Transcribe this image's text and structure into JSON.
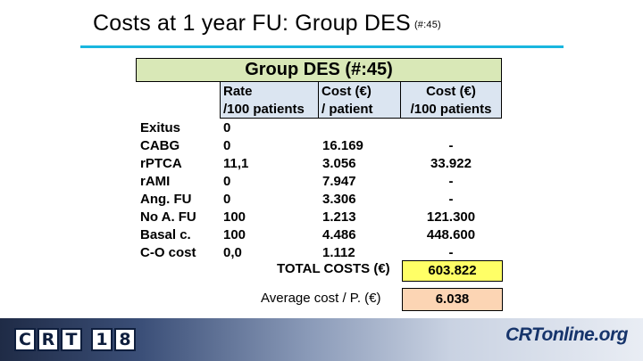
{
  "slide": {
    "title": "Costs at 1 year FU: Group DES",
    "subtitle": "(#:45)"
  },
  "table": {
    "banner": "Group DES (#:45)",
    "headers": {
      "rate_line1": "Rate",
      "rate_line2": "/100 patients",
      "cost_patient_line1": "Cost (€)",
      "cost_patient_line2": "/ patient",
      "cost_100_line1": "Cost (€)",
      "cost_100_line2": "/100 patients"
    },
    "rows": [
      {
        "label": "Exitus",
        "rate": "0",
        "cost_per_patient": "",
        "cost_per_100": ""
      },
      {
        "label": "CABG",
        "rate": "0",
        "cost_per_patient": "16.169",
        "cost_per_100": "-"
      },
      {
        "label": "rPTCA",
        "rate": "11,1",
        "cost_per_patient": "3.056",
        "cost_per_100": "33.922"
      },
      {
        "label": "rAMI",
        "rate": "0",
        "cost_per_patient": "7.947",
        "cost_per_100": "-"
      },
      {
        "label": "Ang. FU",
        "rate": "0",
        "cost_per_patient": "3.306",
        "cost_per_100": "-"
      },
      {
        "label": "No A. FU",
        "rate": "100",
        "cost_per_patient": "1.213",
        "cost_per_100": "121.300"
      },
      {
        "label": "Basal c.",
        "rate": "100",
        "cost_per_patient": "4.486",
        "cost_per_100": "448.600"
      },
      {
        "label": "C-O cost",
        "rate": "0,0",
        "cost_per_patient": "1.112",
        "cost_per_100": "-"
      }
    ],
    "total_label": "TOTAL COSTS (€)",
    "total_value": "603.822",
    "average_label": "Average cost / P. (€)",
    "average_value": "6.038"
  },
  "footer": {
    "left_logo_letters": [
      "C",
      "R",
      "T",
      "1",
      "8"
    ],
    "right_logo_crt": "CRT",
    "right_logo_rest": "online.org"
  },
  "colors": {
    "title_rule": "#19b6df",
    "banner_bg": "#d9e8b7",
    "header_bg": "#dbe5f1",
    "total_bg": "#ffff66",
    "average_bg": "#fcd5b4"
  }
}
